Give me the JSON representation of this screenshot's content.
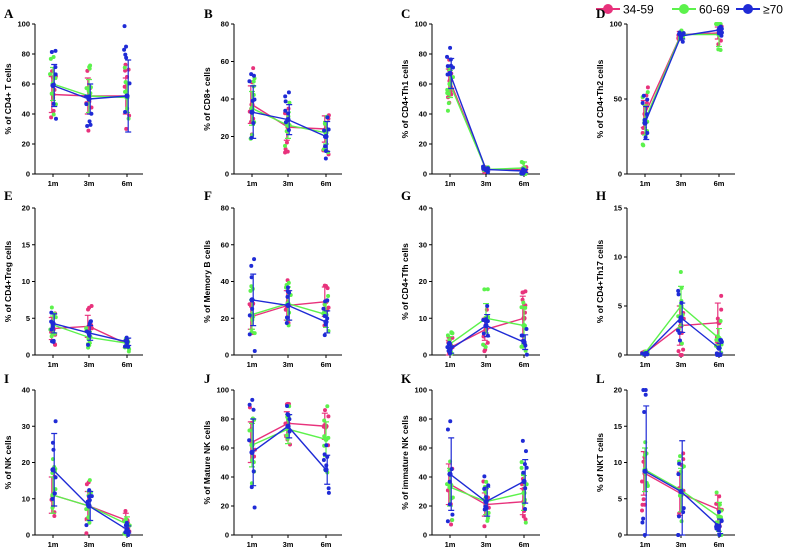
{
  "colors": {
    "g1": "#e8327c",
    "g2": "#5cf24c",
    "g3": "#1f2bd6"
  },
  "legend": [
    {
      "key": "g1",
      "label": "34-59"
    },
    {
      "key": "g2",
      "label": "60-69"
    },
    {
      "key": "g3",
      "label": "≥70"
    }
  ],
  "chart_data": [
    {
      "letter": "A",
      "type": "line",
      "ylabel": "% of CD4+ T cells",
      "categories": [
        "1m",
        "3m",
        "6m"
      ],
      "ylim": [
        0,
        100
      ],
      "yticks": [
        0,
        20,
        40,
        60,
        80,
        100
      ],
      "series": [
        {
          "key": "g1",
          "values": [
            53,
            52,
            52
          ],
          "err": [
            12,
            12,
            12
          ]
        },
        {
          "key": "g2",
          "values": [
            60,
            52,
            51
          ],
          "err": [
            11,
            11,
            10
          ]
        },
        {
          "key": "g3",
          "values": [
            59,
            50,
            52
          ],
          "err": [
            14,
            10,
            24
          ]
        }
      ]
    },
    {
      "letter": "B",
      "type": "line",
      "ylabel": "% of CD8+ cells",
      "categories": [
        "1m",
        "3m",
        "6m"
      ],
      "ylim": [
        0,
        80
      ],
      "yticks": [
        0,
        20,
        40,
        60,
        80
      ],
      "series": [
        {
          "key": "g1",
          "values": [
            37,
            25,
            24
          ],
          "err": [
            10,
            7,
            7
          ]
        },
        {
          "key": "g2",
          "values": [
            35,
            26,
            22
          ],
          "err": [
            9,
            7,
            6
          ]
        },
        {
          "key": "g3",
          "values": [
            33,
            29,
            20
          ],
          "err": [
            14,
            8,
            8
          ]
        }
      ]
    },
    {
      "letter": "C",
      "type": "line",
      "ylabel": "% of CD4+Th1 cells",
      "categories": [
        "1m",
        "3m",
        "6m"
      ],
      "ylim": [
        0,
        100
      ],
      "yticks": [
        0,
        20,
        40,
        60,
        80,
        100
      ],
      "series": [
        {
          "key": "g1",
          "values": [
            62,
            3,
            3
          ],
          "err": [
            8,
            1,
            1
          ]
        },
        {
          "key": "g2",
          "values": [
            60,
            3,
            4
          ],
          "err": [
            9,
            1,
            4
          ]
        },
        {
          "key": "g3",
          "values": [
            67,
            3,
            2
          ],
          "err": [
            10,
            1,
            1
          ]
        }
      ]
    },
    {
      "letter": "D",
      "type": "line",
      "ylabel": "% of CD4+Th2 cells",
      "categories": [
        "1m",
        "3m",
        "6m"
      ],
      "ylim": [
        0,
        100
      ],
      "yticks": [
        0,
        50,
        100
      ],
      "series": [
        {
          "key": "g1",
          "values": [
            40,
            93,
            94
          ],
          "err": [
            9,
            2,
            4
          ]
        },
        {
          "key": "g2",
          "values": [
            36,
            93,
            93
          ],
          "err": [
            10,
            2,
            8
          ]
        },
        {
          "key": "g3",
          "values": [
            34,
            92,
            96
          ],
          "err": [
            11,
            2,
            2
          ]
        }
      ]
    },
    {
      "letter": "E",
      "type": "line",
      "ylabel": "% of CD4+Treg cells",
      "categories": [
        "1m",
        "3m",
        "6m"
      ],
      "ylim": [
        0,
        20
      ],
      "yticks": [
        0,
        5,
        10,
        15,
        20
      ],
      "series": [
        {
          "key": "g1",
          "values": [
            3.6,
            3.9,
            1.5
          ],
          "err": [
            1.5,
            1.5,
            0.5
          ]
        },
        {
          "key": "g2",
          "values": [
            4.1,
            2.4,
            1.6
          ],
          "err": [
            1.2,
            0.8,
            0.6
          ]
        },
        {
          "key": "g3",
          "values": [
            4.3,
            3.0,
            1.8
          ],
          "err": [
            1.3,
            1.0,
            0.5
          ]
        }
      ]
    },
    {
      "letter": "F",
      "type": "line",
      "ylabel": "% of Memory B cells",
      "categories": [
        "1m",
        "3m",
        "6m"
      ],
      "ylim": [
        0,
        80
      ],
      "yticks": [
        0,
        20,
        40,
        60,
        80
      ],
      "series": [
        {
          "key": "g1",
          "values": [
            21,
            27,
            29
          ],
          "err": [
            7,
            8,
            8
          ]
        },
        {
          "key": "g2",
          "values": [
            22,
            28,
            22
          ],
          "err": [
            8,
            9,
            7
          ]
        },
        {
          "key": "g3",
          "values": [
            30,
            27,
            18
          ],
          "err": [
            14,
            8,
            6
          ]
        }
      ]
    },
    {
      "letter": "G",
      "type": "line",
      "ylabel": "% of CD4+Tfh cells",
      "categories": [
        "1m",
        "3m",
        "6m"
      ],
      "ylim": [
        0,
        40
      ],
      "yticks": [
        0,
        10,
        20,
        30,
        40
      ],
      "series": [
        {
          "key": "g1",
          "values": [
            2,
            7,
            10
          ],
          "err": [
            2,
            3,
            6
          ]
        },
        {
          "key": "g2",
          "values": [
            3,
            10,
            8
          ],
          "err": [
            2,
            4,
            5
          ]
        },
        {
          "key": "g3",
          "values": [
            1.5,
            8,
            3.5
          ],
          "err": [
            1,
            3,
            2
          ]
        }
      ]
    },
    {
      "letter": "H",
      "type": "line",
      "ylabel": "% of CD4+Th17 cells",
      "categories": [
        "1m",
        "3m",
        "6m"
      ],
      "ylim": [
        0,
        15
      ],
      "yticks": [
        0,
        5,
        10,
        15
      ],
      "series": [
        {
          "key": "g1",
          "values": [
            0.2,
            3.0,
            3.3
          ],
          "err": [
            0.1,
            2,
            2
          ]
        },
        {
          "key": "g2",
          "values": [
            0.2,
            5.0,
            1.7
          ],
          "err": [
            0.1,
            2,
            1
          ]
        },
        {
          "key": "g3",
          "values": [
            0.1,
            3.8,
            0.7
          ],
          "err": [
            0.05,
            1.5,
            0.5
          ]
        }
      ]
    },
    {
      "letter": "I",
      "type": "line",
      "ylabel": "% of NK cells",
      "categories": [
        "1m",
        "3m",
        "6m"
      ],
      "ylim": [
        0,
        40
      ],
      "yticks": [
        0,
        10,
        20,
        30,
        40
      ],
      "series": [
        {
          "key": "g1",
          "values": [
            11,
            8,
            4
          ],
          "err": [
            5,
            4,
            2
          ]
        },
        {
          "key": "g2",
          "values": [
            11,
            8,
            3
          ],
          "err": [
            5,
            4,
            2
          ]
        },
        {
          "key": "g3",
          "values": [
            18,
            8,
            1.5
          ],
          "err": [
            10,
            4,
            1
          ]
        }
      ]
    },
    {
      "letter": "J",
      "type": "line",
      "ylabel": "% of Mature NK cells",
      "categories": [
        "1m",
        "3m",
        "6m"
      ],
      "ylim": [
        0,
        100
      ],
      "yticks": [
        0,
        20,
        40,
        60,
        80,
        100
      ],
      "series": [
        {
          "key": "g1",
          "values": [
            64,
            77,
            75
          ],
          "err": [
            14,
            8,
            9
          ]
        },
        {
          "key": "g2",
          "values": [
            62,
            73,
            66
          ],
          "err": [
            15,
            10,
            12
          ]
        },
        {
          "key": "g3",
          "values": [
            57,
            75,
            45
          ],
          "err": [
            23,
            8,
            10
          ]
        }
      ]
    },
    {
      "letter": "K",
      "type": "line",
      "ylabel": "% of immature NK cells",
      "categories": [
        "1m",
        "3m",
        "6m"
      ],
      "ylim": [
        0,
        100
      ],
      "yticks": [
        0,
        20,
        40,
        60,
        80,
        100
      ],
      "series": [
        {
          "key": "g1",
          "values": [
            35,
            21,
            23
          ],
          "err": [
            14,
            8,
            9
          ]
        },
        {
          "key": "g2",
          "values": [
            33,
            23,
            29
          ],
          "err": [
            13,
            9,
            12
          ]
        },
        {
          "key": "g3",
          "values": [
            42,
            23,
            37
          ],
          "err": [
            25,
            10,
            15
          ]
        }
      ]
    },
    {
      "letter": "L",
      "type": "line",
      "ylabel": "% of NKT cells",
      "categories": [
        "1m",
        "3m",
        "6m"
      ],
      "ylim": [
        0,
        20
      ],
      "yticks": [
        0,
        5,
        10,
        15,
        20
      ],
      "series": [
        {
          "key": "g1",
          "values": [
            8.5,
            5.7,
            3.5
          ],
          "err": [
            3,
            3,
            2
          ]
        },
        {
          "key": "g2",
          "values": [
            9,
            6.2,
            2.5
          ],
          "err": [
            3,
            3,
            2
          ]
        },
        {
          "key": "g3",
          "values": [
            8.8,
            6,
            1.2
          ],
          "err": [
            9,
            7,
            1
          ]
        }
      ]
    }
  ]
}
